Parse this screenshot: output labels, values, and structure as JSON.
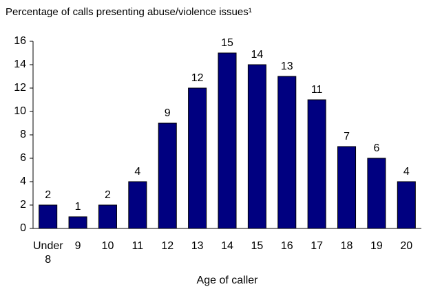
{
  "chart_data": {
    "type": "bar",
    "title": "Percentage of calls presenting abuse/violence issues¹",
    "x_label": "Age of caller",
    "categories": [
      "Under 8",
      "9",
      "10",
      "11",
      "12",
      "13",
      "14",
      "15",
      "16",
      "17",
      "18",
      "19",
      "20"
    ],
    "values": [
      2,
      1,
      2,
      4,
      9,
      12,
      15,
      14,
      13,
      11,
      7,
      6,
      4
    ],
    "color": "#000080",
    "ylim": [
      0,
      16
    ],
    "yticks": [
      0,
      2,
      4,
      6,
      8,
      10,
      12,
      14,
      16
    ],
    "grid": false
  }
}
